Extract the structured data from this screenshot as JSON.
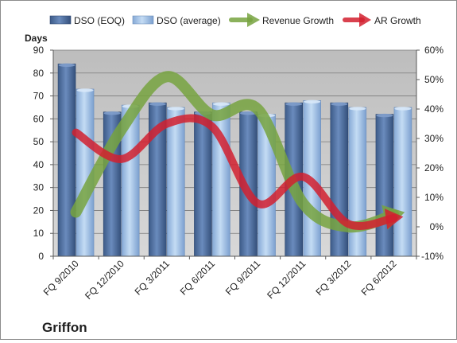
{
  "chart_data": {
    "type": "bar",
    "company": "Griffon",
    "y_left_label": "Days",
    "ylim_left": [
      0,
      90
    ],
    "ylim_right": [
      -0.1,
      0.6
    ],
    "grid": "horizontal",
    "legend_position": "top",
    "categories": [
      "FQ 9/2010",
      "FQ 12/2010",
      "FQ 3/2011",
      "FQ 6/2011",
      "FQ 9/2011",
      "FQ 12/2011",
      "FQ 3/2012",
      "FQ 6/2012"
    ],
    "left_ticks": [
      "0",
      "10",
      "20",
      "30",
      "40",
      "50",
      "60",
      "70",
      "80",
      "90"
    ],
    "right_ticks": [
      "-10%",
      "0%",
      "10%",
      "20%",
      "30%",
      "40%",
      "50%",
      "60%"
    ],
    "series": [
      {
        "name": "DSO (EOQ)",
        "kind": "bar",
        "axis": "left",
        "color": "#4f6e9e",
        "values": [
          84,
          63,
          67,
          63,
          63,
          67,
          67,
          62
        ]
      },
      {
        "name": "DSO (average)",
        "kind": "bar",
        "axis": "left",
        "color": "#a7c6ea",
        "values": [
          73,
          66,
          65,
          67,
          62,
          68,
          65,
          65
        ]
      },
      {
        "name": "Revenue Growth",
        "kind": "arrow-line",
        "axis": "right",
        "color": "#77a33f",
        "values": [
          0.05,
          0.33,
          0.51,
          0.38,
          0.4,
          0.08,
          0.0,
          0.04
        ]
      },
      {
        "name": "AR Growth",
        "kind": "arrow-line",
        "axis": "right",
        "color": "#d2202f",
        "values": [
          0.32,
          0.23,
          0.35,
          0.34,
          0.08,
          0.17,
          0.01,
          0.03
        ]
      }
    ]
  }
}
